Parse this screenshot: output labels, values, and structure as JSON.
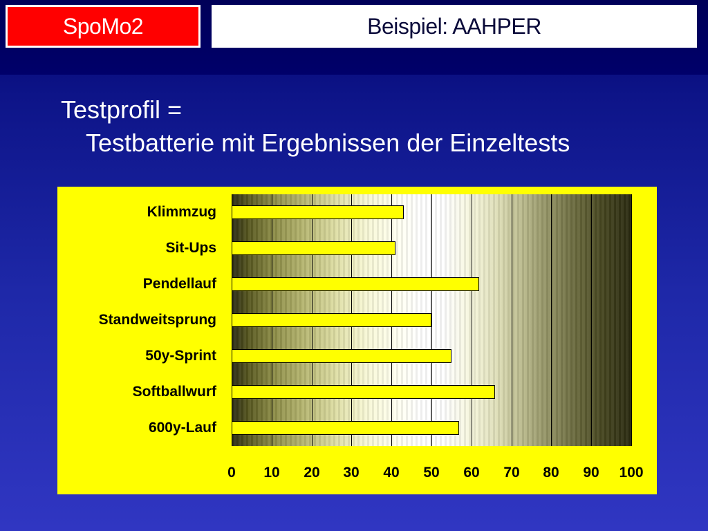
{
  "header": {
    "brand": "SpoMo2",
    "title": "Beispiel: AAHPER"
  },
  "content": {
    "line1": "Testprofil =",
    "line2": "Testbatterie mit Ergebnissen der Einzeltests"
  },
  "colors": {
    "panel_background": "#ffff00",
    "bar_fill": "#ffff00",
    "brand_box": "#ff0000"
  },
  "chart_data": {
    "type": "bar",
    "orientation": "horizontal",
    "categories": [
      "Klimmzug",
      "Sit-Ups",
      "Pendellauf",
      "Standweitsprung",
      "50y-Sprint",
      "Softballwurf",
      "600y-Lauf"
    ],
    "values": [
      43,
      41,
      62,
      50,
      55,
      66,
      57
    ],
    "xlim": [
      0,
      100
    ],
    "xticks": [
      "0",
      "10",
      "20",
      "30",
      "40",
      "50",
      "60",
      "70",
      "80",
      "90",
      "100"
    ],
    "grid": true,
    "legend": "none"
  }
}
